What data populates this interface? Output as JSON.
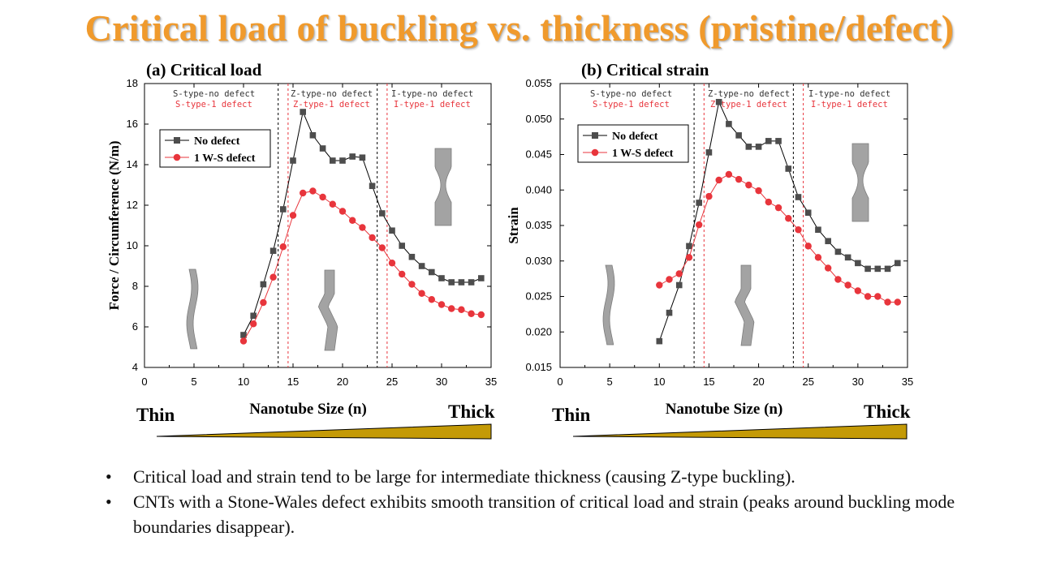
{
  "slide": {
    "title": "Critical load of buckling vs. thickness (pristine/defect)",
    "bullets": [
      "Critical load and strain tend to be large for intermediate thickness (causing Z-type buckling).",
      "CNTs with a Stone-Wales defect exhibits smooth transition of critical load and strain (peaks around buckling mode boundaries disappear)."
    ],
    "bullet_glyph": "•",
    "thin_label": "Thin",
    "thick_label": "Thick",
    "wedge_color": "#c49a06"
  },
  "chart_data": [
    {
      "type": "line",
      "title": "(a) Critical load",
      "xlabel": "Nanotube Size (n)",
      "ylabel": "Force / Circumference (N/m)",
      "xlim": [
        0,
        35
      ],
      "ylim": [
        4,
        18
      ],
      "xticks": [
        "0",
        "5",
        "10",
        "15",
        "20",
        "25",
        "30",
        "35"
      ],
      "yticks": [
        "4",
        "6",
        "8",
        "10",
        "12",
        "14",
        "16",
        "18"
      ],
      "x": [
        10,
        11,
        12,
        13,
        14,
        15,
        16,
        17,
        18,
        19,
        20,
        21,
        22,
        23,
        24,
        25,
        26,
        27,
        28,
        29,
        30,
        31,
        32,
        33,
        34
      ],
      "series": [
        {
          "name": "No defect",
          "color": "#4d4d4d",
          "marker": "square",
          "values": [
            5.6,
            6.55,
            8.1,
            9.75,
            11.8,
            14.2,
            16.6,
            15.45,
            14.8,
            14.2,
            14.2,
            14.4,
            14.35,
            12.95,
            11.6,
            10.75,
            10.0,
            9.45,
            9.0,
            8.7,
            8.4,
            8.2,
            8.2,
            8.2,
            8.4
          ]
        },
        {
          "name": "1 W-S defect",
          "color": "#e8353c",
          "marker": "circle",
          "values": [
            5.3,
            6.15,
            7.2,
            8.45,
            9.95,
            11.5,
            12.6,
            12.7,
            12.4,
            12.05,
            11.7,
            11.25,
            10.9,
            10.4,
            9.9,
            9.15,
            8.6,
            8.1,
            7.65,
            7.35,
            7.1,
            6.9,
            6.85,
            6.65,
            6.6
          ]
        }
      ],
      "boundaries": [
        {
          "x": 13.5,
          "color": "#000000"
        },
        {
          "x": 14.5,
          "color": "#e8353c"
        },
        {
          "x": 23.5,
          "color": "#000000"
        },
        {
          "x": 24.5,
          "color": "#e8353c"
        }
      ],
      "annotations": [
        {
          "text": "S-type-no defect",
          "color": "#333333"
        },
        {
          "text": "S-type-1 defect",
          "color": "#e8353c"
        },
        {
          "text": "Z-type-no defect",
          "color": "#333333"
        },
        {
          "text": "Z-type-1 defect",
          "color": "#e8353c"
        },
        {
          "text": "I-type-no defect",
          "color": "#333333"
        },
        {
          "text": "I-type-1 defect",
          "color": "#e8353c"
        }
      ],
      "legend": "upper-left"
    },
    {
      "type": "line",
      "title": "(b) Critical strain",
      "xlabel": "Nanotube Size (n)",
      "ylabel": "Strain",
      "xlim": [
        0,
        35
      ],
      "ylim": [
        0.015,
        0.055
      ],
      "xticks": [
        "0",
        "5",
        "10",
        "15",
        "20",
        "25",
        "30",
        "35"
      ],
      "yticks": [
        "0.015",
        "0.020",
        "0.025",
        "0.030",
        "0.035",
        "0.040",
        "0.045",
        "0.050",
        "0.055"
      ],
      "x": [
        10,
        11,
        12,
        13,
        14,
        15,
        16,
        17,
        18,
        19,
        20,
        21,
        22,
        23,
        24,
        25,
        26,
        27,
        28,
        29,
        30,
        31,
        32,
        33,
        34
      ],
      "series": [
        {
          "name": "No defect",
          "color": "#4d4d4d",
          "marker": "square",
          "values": [
            0.0187,
            0.0227,
            0.0266,
            0.0321,
            0.0382,
            0.0453,
            0.0524,
            0.0493,
            0.0477,
            0.0461,
            0.0461,
            0.0469,
            0.0469,
            0.043,
            0.039,
            0.0368,
            0.0344,
            0.0328,
            0.0313,
            0.0305,
            0.0297,
            0.0289,
            0.0289,
            0.0289,
            0.0297
          ]
        },
        {
          "name": "1 W-S defect",
          "color": "#e8353c",
          "marker": "circle",
          "values": [
            0.0266,
            0.0274,
            0.0282,
            0.0305,
            0.0351,
            0.0391,
            0.0414,
            0.0422,
            0.0415,
            0.0407,
            0.0399,
            0.0383,
            0.0375,
            0.036,
            0.0344,
            0.0321,
            0.0305,
            0.029,
            0.0274,
            0.0266,
            0.0258,
            0.025,
            0.025,
            0.0242,
            0.0242
          ]
        }
      ],
      "boundaries": [
        {
          "x": 13.5,
          "color": "#000000"
        },
        {
          "x": 14.5,
          "color": "#e8353c"
        },
        {
          "x": 23.5,
          "color": "#000000"
        },
        {
          "x": 24.5,
          "color": "#e8353c"
        }
      ],
      "annotations": [
        {
          "text": "S-type-no defect",
          "color": "#333333"
        },
        {
          "text": "S-type-1 defect",
          "color": "#e8353c"
        },
        {
          "text": "Z-type-no defect",
          "color": "#333333"
        },
        {
          "text": "Z-type-1 defect",
          "color": "#e8353c"
        },
        {
          "text": "I-type-no defect",
          "color": "#333333"
        },
        {
          "text": "I-type-1 defect",
          "color": "#e8353c"
        }
      ],
      "legend": "upper-left"
    }
  ]
}
